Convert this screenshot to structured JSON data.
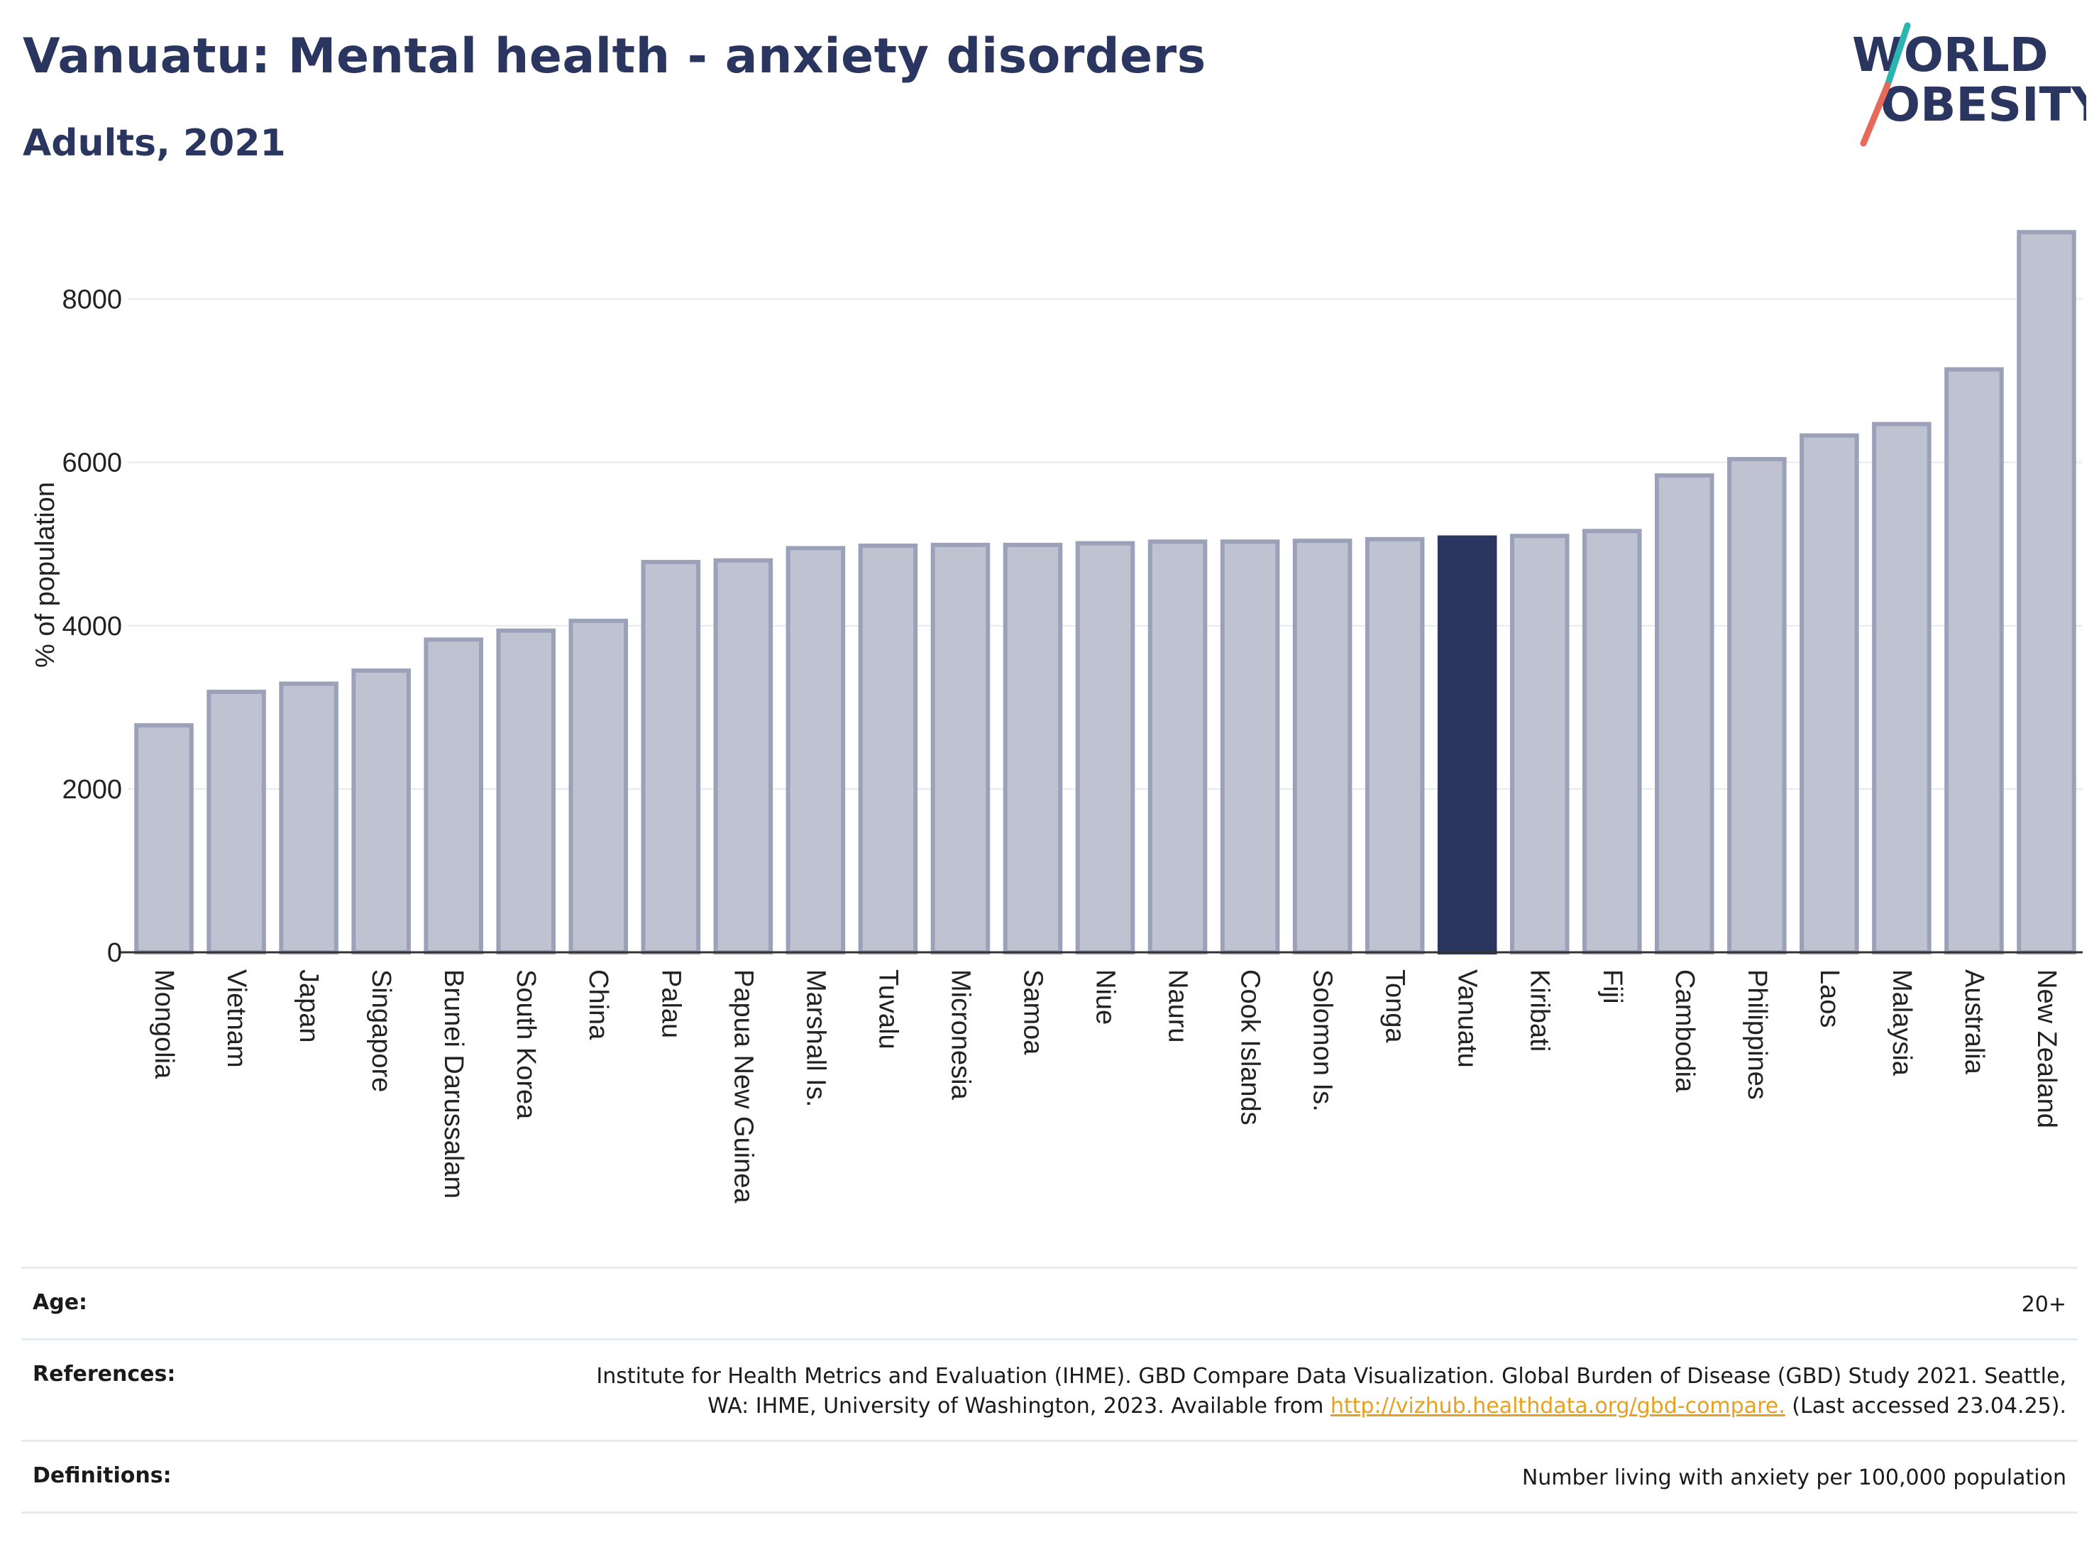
{
  "header": {
    "title": "Vanuatu: Mental health - anxiety disorders",
    "subtitle": "Adults, 2021"
  },
  "logo": {
    "line1": "WORLD",
    "line2": "OBESITY"
  },
  "colors": {
    "highlight": "#2b3660",
    "bar_fill": "#bfc3d1",
    "bar_stroke": "#9ba1b8",
    "grid": "#e6e9ef",
    "logo_text": "#2b3660",
    "logo_teal": "#2bb5b0",
    "logo_coral": "#e56a5a"
  },
  "chart_data": {
    "type": "bar",
    "ylabel": "% of population",
    "ylim": [
      0,
      8900
    ],
    "yticks": [
      0,
      2000,
      4000,
      6000,
      8000
    ],
    "grid": true,
    "highlight": "Vanuatu",
    "categories": [
      "Mongolia",
      "Vietnam",
      "Japan",
      "Singapore",
      "Brunei Darussalam",
      "South Korea",
      "China",
      "Palau",
      "Papua New Guinea",
      "Marshall Is.",
      "Tuvalu",
      "Micronesia",
      "Samoa",
      "Niue",
      "Nauru",
      "Cook Islands",
      "Solomon Is.",
      "Tonga",
      "Vanuatu",
      "Kiribati",
      "Fiji",
      "Cambodia",
      "Philippines",
      "Laos",
      "Malaysia",
      "Australia",
      "New Zealand"
    ],
    "values": [
      2780,
      3190,
      3290,
      3450,
      3830,
      3940,
      4060,
      4780,
      4800,
      4950,
      4980,
      4990,
      4990,
      5010,
      5030,
      5030,
      5040,
      5060,
      5080,
      5100,
      5160,
      5840,
      6040,
      6330,
      6470,
      7140,
      8820
    ]
  },
  "info": {
    "age_label": "Age:",
    "age_value": "20+",
    "references_label": "References:",
    "references_text": "Institute for Health Metrics and Evaluation (IHME). GBD Compare Data Visualization. Global Burden of Disease (GBD) Study 2021. Seattle, WA: IHME, University of Washington, 2023. Available from",
    "references_link": "http://vizhub.healthdata.org/gbd-compare.",
    "references_suffix": "(Last accessed 23.04.25).",
    "definitions_label": "Definitions:",
    "definitions_value": "Number living with anxiety per 100,000 population"
  }
}
